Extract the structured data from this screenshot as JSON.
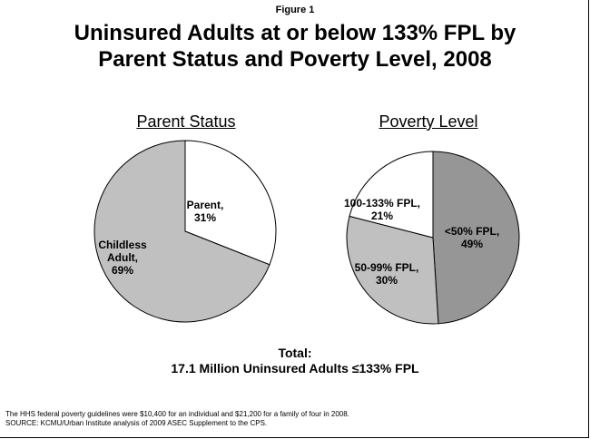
{
  "figure_label": "Figure 1",
  "title_line1": "Uninsured Adults at or below 133% FPL by",
  "title_line2": "Parent Status and Poverty Level, 2008",
  "total_line1": "Total:",
  "total_line2": "17.1 Million Uninsured Adults ≤133% FPL",
  "note_line1": "The HHS federal poverty guidelines were $10,400 for an individual and $21,200 for a family of four in 2008.",
  "note_line2": "SOURCE: KCMU/Urban Institute analysis of 2009 ASEC Supplement to the CPS.",
  "chart_data": [
    {
      "type": "pie",
      "title": "Parent Status",
      "slices": [
        {
          "label_lines": [
            "Parent,",
            "31%"
          ],
          "value": 31,
          "color": "#ffffff"
        },
        {
          "label_lines": [
            "Childless",
            "Adult,",
            "69%"
          ],
          "value": 69,
          "color": "#c0c0c0"
        }
      ]
    },
    {
      "type": "pie",
      "title": "Poverty Level",
      "slices": [
        {
          "label_lines": [
            "<50% FPL,",
            "49%"
          ],
          "value": 49,
          "color": "#969696"
        },
        {
          "label_lines": [
            "50-99% FPL,",
            "30%"
          ],
          "value": 30,
          "color": "#c0c0c0"
        },
        {
          "label_lines": [
            "100-133% FPL,",
            "21%"
          ],
          "value": 21,
          "color": "#ffffff"
        }
      ]
    }
  ]
}
